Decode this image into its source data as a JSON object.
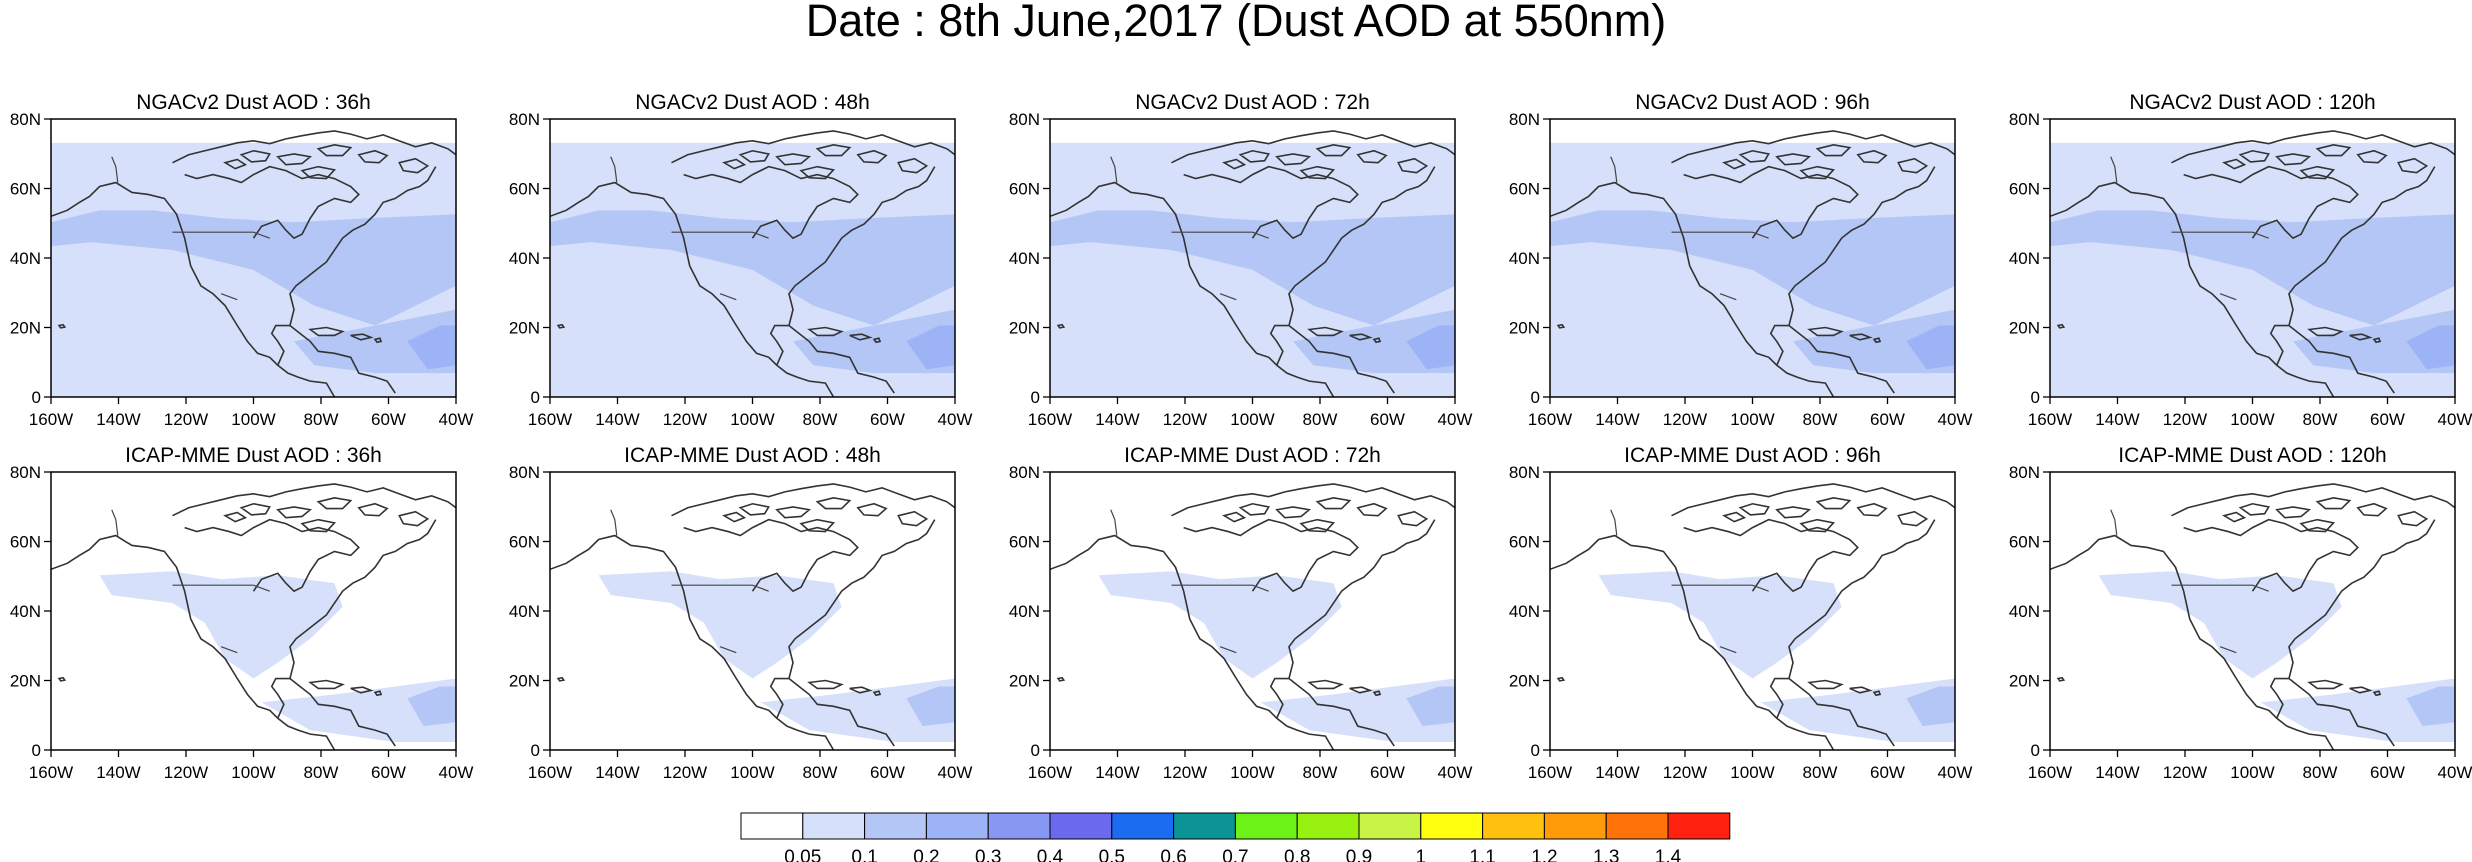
{
  "title": "Date : 8th June,2017 (Dust AOD at 550nm)",
  "panels": [
    {
      "title": "NGACv2 Dust AOD : 36h"
    },
    {
      "title": "NGACv2 Dust AOD : 48h"
    },
    {
      "title": "NGACv2 Dust AOD : 72h"
    },
    {
      "title": "NGACv2 Dust AOD : 96h"
    },
    {
      "title": "NGACv2 Dust AOD : 120h"
    },
    {
      "title": "ICAP-MME Dust AOD : 36h"
    },
    {
      "title": "ICAP-MME Dust AOD : 48h"
    },
    {
      "title": "ICAP-MME Dust AOD : 72h"
    },
    {
      "title": "ICAP-MME Dust AOD : 96h"
    },
    {
      "title": "ICAP-MME Dust AOD : 120h"
    }
  ],
  "lon_ticks": [
    "160W",
    "140W",
    "120W",
    "100W",
    "80W",
    "60W",
    "40W"
  ],
  "lat_ticks": [
    "0",
    "20N",
    "40N",
    "60N",
    "80N"
  ],
  "legend": {
    "labels": [
      "0.05",
      "0.1",
      "0.2",
      "0.3",
      "0.4",
      "0.5",
      "0.6",
      "0.7",
      "0.8",
      "0.9",
      "1",
      "1.1",
      "1.2",
      "1.3",
      "1.4"
    ],
    "colors": [
      "#ffffff",
      "#d6e0fa",
      "#b4c6f6",
      "#9cb4f5",
      "#8898f2",
      "#6a6aee",
      "#1c6cf2",
      "#0c9496",
      "#6cf216",
      "#98f010",
      "#c8f446",
      "#ffff10",
      "#ffc010",
      "#ff9a08",
      "#ff7208",
      "#ff2210"
    ]
  },
  "fill_colors": {
    "light": "#d6e0fa",
    "medium": "#b4c6f6",
    "dark": "#9cb4f5"
  }
}
